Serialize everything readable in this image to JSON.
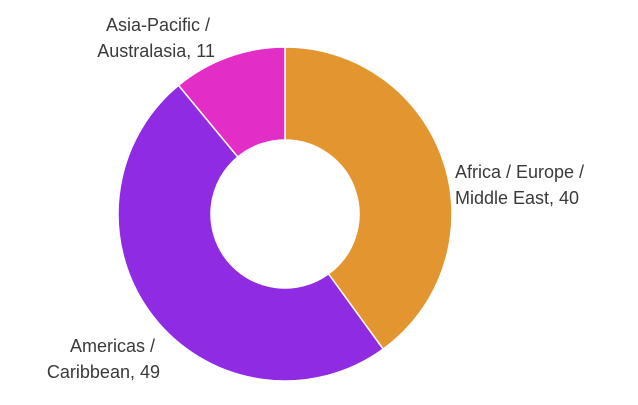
{
  "chart_data": {
    "type": "pie",
    "variant": "donut",
    "categories": [
      "Africa / Europe / Middle East",
      "Americas / Caribbean",
      "Asia-Pacific / Australasia"
    ],
    "values": [
      40,
      49,
      11
    ],
    "colors": [
      "#E3952F",
      "#8F2BE3",
      "#E22DC6"
    ],
    "labels": [
      {
        "lines": [
          "Africa / Europe /",
          "Middle East, 40"
        ]
      },
      {
        "lines": [
          "Americas /",
          "Caribbean, 49"
        ]
      },
      {
        "lines": [
          "Asia-Pacific /",
          "Australasia, 11"
        ]
      }
    ],
    "title": "",
    "legend": "none"
  }
}
